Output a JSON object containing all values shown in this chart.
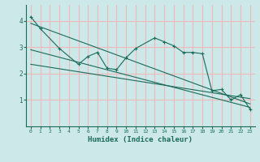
{
  "xlabel": "Humidex (Indice chaleur)",
  "bg_color": "#cce8e8",
  "grid_color": "#f0b8b8",
  "line_color": "#1a6b5a",
  "xlim": [
    -0.5,
    23.5
  ],
  "ylim": [
    0,
    4.6
  ],
  "yticks": [
    1,
    2,
    3,
    4
  ],
  "xticks": [
    0,
    1,
    2,
    3,
    4,
    5,
    6,
    7,
    8,
    9,
    10,
    11,
    12,
    13,
    14,
    15,
    16,
    17,
    18,
    19,
    20,
    21,
    22,
    23
  ],
  "data_x": [
    0,
    1,
    3,
    5,
    6,
    7,
    8,
    9,
    10,
    11,
    13,
    14,
    15,
    16,
    17,
    18,
    19,
    20,
    21,
    22,
    23
  ],
  "data_y": [
    4.15,
    3.7,
    2.95,
    2.35,
    2.65,
    2.8,
    2.2,
    2.15,
    2.6,
    2.95,
    3.35,
    3.2,
    3.05,
    2.8,
    2.8,
    2.75,
    1.35,
    1.4,
    1.0,
    1.2,
    0.65
  ],
  "trend1_x": [
    0,
    23
  ],
  "trend1_y": [
    3.9,
    0.85
  ],
  "trend2_x": [
    0,
    23
  ],
  "trend2_y": [
    2.9,
    0.72
  ],
  "trend3_x": [
    0,
    23
  ],
  "trend3_y": [
    2.35,
    1.05
  ]
}
